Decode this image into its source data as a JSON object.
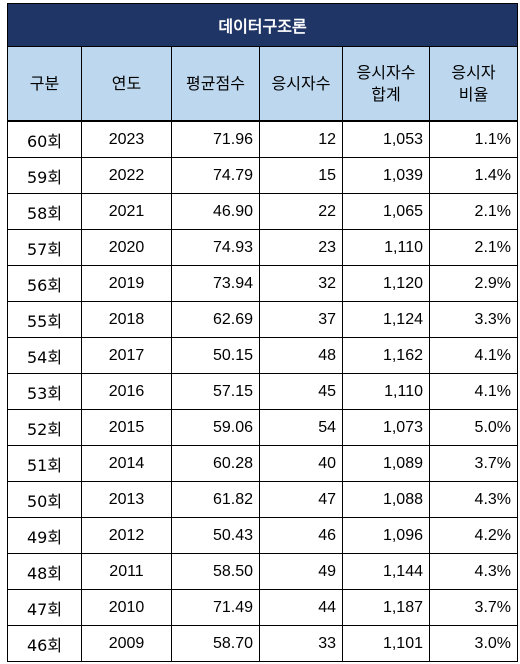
{
  "title": "데이터구조론",
  "headers": [
    "구분",
    "연도",
    "평균점수",
    "응시자수",
    "응시자수\n합계",
    "응시자\n비율"
  ],
  "rows": [
    [
      "60회",
      "2023",
      "71.96",
      "12",
      "1,053",
      "1.1%"
    ],
    [
      "59회",
      "2022",
      "74.79",
      "15",
      "1,039",
      "1.4%"
    ],
    [
      "58회",
      "2021",
      "46.90",
      "22",
      "1,065",
      "2.1%"
    ],
    [
      "57회",
      "2020",
      "74.93",
      "23",
      "1,110",
      "2.1%"
    ],
    [
      "56회",
      "2019",
      "73.94",
      "32",
      "1,120",
      "2.9%"
    ],
    [
      "55회",
      "2018",
      "62.69",
      "37",
      "1,124",
      "3.3%"
    ],
    [
      "54회",
      "2017",
      "50.15",
      "48",
      "1,162",
      "4.1%"
    ],
    [
      "53회",
      "2016",
      "57.15",
      "45",
      "1,110",
      "4.1%"
    ],
    [
      "52회",
      "2015",
      "59.06",
      "54",
      "1,073",
      "5.0%"
    ],
    [
      "51회",
      "2014",
      "60.28",
      "40",
      "1,089",
      "3.7%"
    ],
    [
      "50회",
      "2013",
      "61.82",
      "47",
      "1,088",
      "4.3%"
    ],
    [
      "49회",
      "2012",
      "50.43",
      "46",
      "1,096",
      "4.2%"
    ],
    [
      "48회",
      "2011",
      "58.50",
      "49",
      "1,144",
      "4.3%"
    ],
    [
      "47회",
      "2010",
      "71.49",
      "44",
      "1,187",
      "3.7%"
    ],
    [
      "46회",
      "2009",
      "58.70",
      "33",
      "1,101",
      "3.0%"
    ]
  ]
}
